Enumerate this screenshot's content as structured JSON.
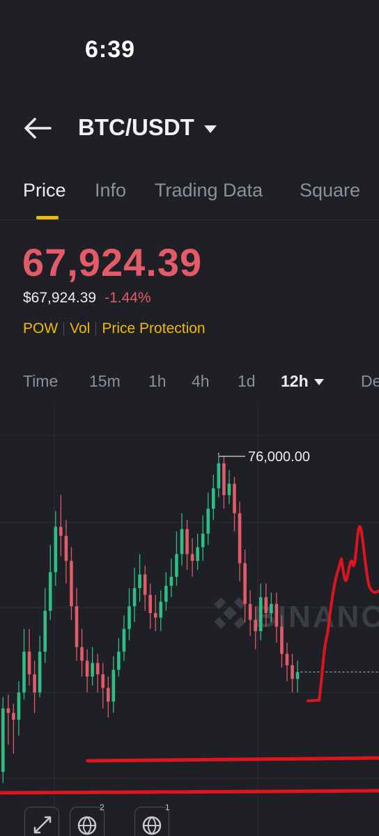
{
  "status": {
    "time": "6:39"
  },
  "header": {
    "pair": "BTC/USDT"
  },
  "tabs": [
    {
      "label": "Price",
      "active": true
    },
    {
      "label": "Info"
    },
    {
      "label": "Trading Data"
    },
    {
      "label": "Square"
    }
  ],
  "price": {
    "last": "67,924.39",
    "usd": "$67,924.39",
    "change": "-1.44%"
  },
  "tags": [
    "POW",
    "Vol",
    "Price Protection"
  ],
  "intervals": [
    {
      "label": "Time"
    },
    {
      "label": "15m"
    },
    {
      "label": "1h"
    },
    {
      "label": "4h"
    },
    {
      "label": "1d"
    },
    {
      "label": "12h",
      "active": true
    },
    {
      "label": "De"
    }
  ],
  "chart_data": {
    "type": "candlestick",
    "high_label": "76,000.00",
    "watermark": "BINANCE",
    "colors": {
      "up": "#2ebd85",
      "down": "#e35a68",
      "drawing": "#e0141e"
    },
    "candles": [
      [
        62000,
        64800,
        61500,
        65300
      ],
      [
        64800,
        64600,
        63200,
        65400
      ],
      [
        64600,
        64300,
        62800,
        65000
      ],
      [
        64300,
        65500,
        63600,
        66000
      ],
      [
        65500,
        67300,
        65200,
        68300
      ],
      [
        67300,
        66300,
        65800,
        68300
      ],
      [
        66300,
        65500,
        64600,
        66900
      ],
      [
        65500,
        67300,
        65300,
        68000
      ],
      [
        67300,
        69100,
        66800,
        70100
      ],
      [
        69100,
        70800,
        68700,
        72000
      ],
      [
        70800,
        72800,
        70200,
        73500
      ],
      [
        72800,
        72400,
        71500,
        74200
      ],
      [
        72400,
        71300,
        70300,
        73100
      ],
      [
        71300,
        69300,
        68700,
        71900
      ],
      [
        69300,
        67500,
        66900,
        70100
      ],
      [
        67500,
        66900,
        66200,
        68300
      ],
      [
        66900,
        66200,
        65500,
        67400
      ],
      [
        66200,
        66800,
        65800,
        67500
      ],
      [
        66800,
        66300,
        65500,
        67200
      ],
      [
        66300,
        65700,
        64800,
        66800
      ],
      [
        65700,
        65100,
        64400,
        66200
      ],
      [
        65100,
        66500,
        64600,
        67100
      ],
      [
        66500,
        67300,
        66200,
        67900
      ],
      [
        67300,
        68300,
        66900,
        68900
      ],
      [
        68300,
        69300,
        67800,
        70100
      ],
      [
        69300,
        70100,
        68600,
        71000
      ],
      [
        70100,
        70700,
        69500,
        71600
      ],
      [
        70700,
        69800,
        69100,
        71100
      ],
      [
        69800,
        69000,
        68300,
        70300
      ],
      [
        69000,
        68800,
        68200,
        69800
      ],
      [
        68800,
        69500,
        68200,
        70000
      ],
      [
        69500,
        70200,
        69100,
        70800
      ],
      [
        70200,
        70600,
        69700,
        71400
      ],
      [
        70600,
        71600,
        70200,
        72600
      ],
      [
        71600,
        72700,
        71100,
        73400
      ],
      [
        72700,
        71600,
        70900,
        73100
      ],
      [
        71600,
        71300,
        70600,
        72300
      ],
      [
        71300,
        71900,
        70900,
        72500
      ],
      [
        71900,
        72500,
        71300,
        73300
      ],
      [
        72500,
        73600,
        72000,
        74300
      ],
      [
        73600,
        74500,
        73100,
        75100
      ],
      [
        74500,
        75600,
        74100,
        76000
      ],
      [
        75600,
        74200,
        73600,
        75900
      ],
      [
        74200,
        74700,
        73800,
        75300
      ],
      [
        74700,
        73400,
        72600,
        75000
      ],
      [
        73400,
        71200,
        70400,
        73900
      ],
      [
        71200,
        69400,
        68600,
        71800
      ],
      [
        69400,
        68700,
        68000,
        70000
      ],
      [
        68700,
        68200,
        67400,
        69300
      ],
      [
        68200,
        69700,
        67800,
        70300
      ],
      [
        69700,
        69000,
        68400,
        70300
      ],
      [
        69000,
        69400,
        68600,
        69900
      ],
      [
        69400,
        68400,
        67700,
        69900
      ],
      [
        68400,
        67200,
        66600,
        68900
      ],
      [
        67200,
        66700,
        66000,
        67700
      ],
      [
        66700,
        66100,
        65500,
        67200
      ],
      [
        66100,
        66400,
        65500,
        66900
      ]
    ]
  }
}
